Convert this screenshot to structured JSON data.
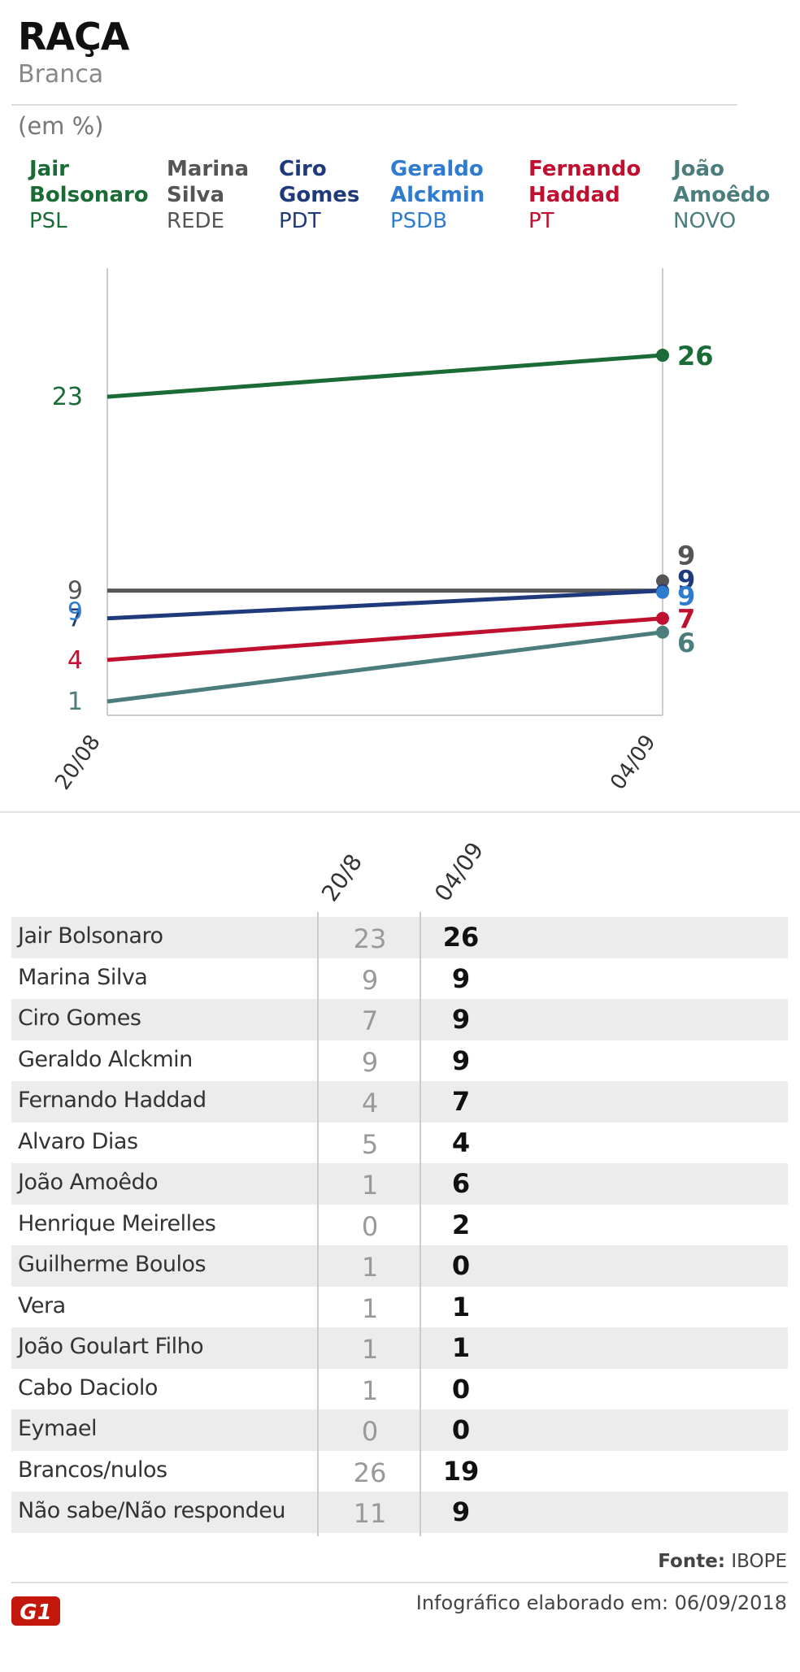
{
  "header": {
    "title": "RAÇA",
    "subtitle": "Branca",
    "unit": "(em %)"
  },
  "colors": {
    "bolsonaro": "#1a6b35",
    "marina": "#555555",
    "ciro": "#1f3a7a",
    "alckmin": "#2f7bd0",
    "haddad": "#c0102f",
    "amoedo": "#4a7d7c",
    "axis": "#cccccc"
  },
  "legend": [
    {
      "name_line1": "Jair",
      "name_line2": "Bolsonaro",
      "party": "PSL",
      "color_key": "bolsonaro"
    },
    {
      "name_line1": "Marina",
      "name_line2": "Silva",
      "party": "REDE",
      "color_key": "marina"
    },
    {
      "name_line1": "Ciro",
      "name_line2": "Gomes",
      "party": "PDT",
      "color_key": "ciro"
    },
    {
      "name_line1": "Geraldo",
      "name_line2": "Alckmin",
      "party": "PSDB",
      "color_key": "alckmin"
    },
    {
      "name_line1": "Fernando",
      "name_line2": "Haddad",
      "party": "PT",
      "color_key": "haddad"
    },
    {
      "name_line1": "João",
      "name_line2": "Amoêdo",
      "party": "NOVO",
      "color_key": "amoedo"
    }
  ],
  "chart_data": {
    "type": "line",
    "x": [
      "20/08",
      "04/09"
    ],
    "series": [
      {
        "name": "Jair Bolsonaro",
        "values": [
          23,
          26
        ],
        "color_key": "bolsonaro"
      },
      {
        "name": "Marina Silva",
        "values": [
          9,
          9
        ],
        "color_key": "marina"
      },
      {
        "name": "Ciro Gomes",
        "values": [
          7,
          9
        ],
        "color_key": "ciro"
      },
      {
        "name": "Geraldo Alckmin",
        "values": [
          9,
          9
        ],
        "color_key": "alckmin"
      },
      {
        "name": "Fernando Haddad",
        "values": [
          4,
          7
        ],
        "color_key": "haddad"
      },
      {
        "name": "João Amoêdo",
        "values": [
          1,
          6
        ],
        "color_key": "amoedo"
      }
    ]
  },
  "table": {
    "col_a": "20/8",
    "col_b": "04/09",
    "rows": [
      {
        "name": "Jair Bolsonaro",
        "a": "23",
        "b": "26"
      },
      {
        "name": "Marina Silva",
        "a": "9",
        "b": "9"
      },
      {
        "name": "Ciro Gomes",
        "a": "7",
        "b": "9"
      },
      {
        "name": "Geraldo Alckmin",
        "a": "9",
        "b": "9"
      },
      {
        "name": "Fernando Haddad",
        "a": "4",
        "b": "7"
      },
      {
        "name": "Alvaro Dias",
        "a": "5",
        "b": "4"
      },
      {
        "name": "João Amoêdo",
        "a": "1",
        "b": "6"
      },
      {
        "name": "Henrique Meirelles",
        "a": "0",
        "b": "2"
      },
      {
        "name": "Guilherme Boulos",
        "a": "1",
        "b": "0"
      },
      {
        "name": "Vera",
        "a": "1",
        "b": "1"
      },
      {
        "name": "João Goulart Filho",
        "a": "1",
        "b": "1"
      },
      {
        "name": "Cabo Daciolo",
        "a": "1",
        "b": "0"
      },
      {
        "name": "Eymael",
        "a": "0",
        "b": "0"
      },
      {
        "name": "Brancos/nulos",
        "a": "26",
        "b": "19"
      },
      {
        "name": "Não sabe/Não respondeu",
        "a": "11",
        "b": "9"
      }
    ]
  },
  "footer": {
    "source_label": "Fonte:",
    "source_value": "IBOPE",
    "credit": "Infográfico elaborado em: 06/09/2018",
    "logo_text": "G1"
  }
}
